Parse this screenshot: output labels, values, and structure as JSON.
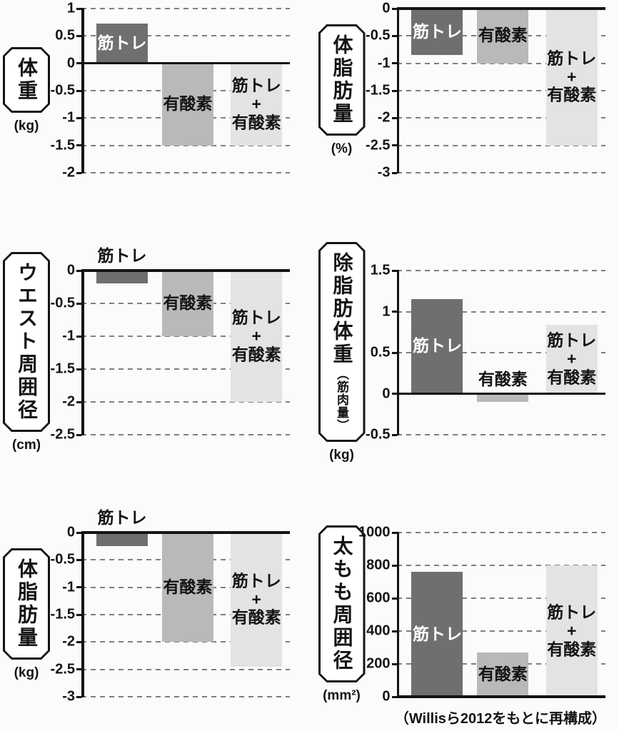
{
  "page": {
    "caption": "（Willisら2012をもとに再構成）",
    "background": "#fbfbfb"
  },
  "colors": {
    "bar_dark": "#6f6f6f",
    "bar_medium": "#b9b9b9",
    "bar_light": "#e3e3e3",
    "axis": "#141414",
    "grid": "#7f7f7f",
    "label_on_dark": "#ffffff",
    "label_on_light": "#141414"
  },
  "chart_data": [
    {
      "type": "bar",
      "title": "体重",
      "subtitle": "",
      "unit": "(kg)",
      "ylim": [
        -2,
        1
      ],
      "yticks": [
        1,
        0.5,
        0,
        -0.5,
        -1,
        -1.5,
        -2
      ],
      "ytick_labels": [
        "1",
        "0.5",
        "0",
        "-0.5",
        "-1",
        "-1.5",
        "-2"
      ],
      "gridlines": "dashed",
      "legend": "none",
      "categories": [
        "筋トレ",
        "有酸素",
        "筋トレ＋有酸素"
      ],
      "values": [
        0.72,
        -1.5,
        -1.5
      ],
      "bar_styles": [
        "dark",
        "medium",
        "light"
      ],
      "bar_label_lines": [
        [
          "筋トレ"
        ],
        [
          "有酸素"
        ],
        [
          "筋トレ",
          "+",
          "有酸素"
        ]
      ],
      "label_placement": [
        "inside",
        "inside",
        "inside"
      ]
    },
    {
      "type": "bar",
      "title": "体脂肪量",
      "subtitle": "",
      "unit": "(%)",
      "ylim": [
        -3,
        0
      ],
      "yticks": [
        0,
        -0.5,
        -1,
        -1.5,
        -2,
        -2.5,
        -3
      ],
      "ytick_labels": [
        "0",
        "-0.5",
        "-1",
        "-1.5",
        "-2",
        "-2.5",
        "-3"
      ],
      "gridlines": "dashed",
      "legend": "none",
      "categories": [
        "筋トレ",
        "有酸素",
        "筋トレ＋有酸素"
      ],
      "values": [
        -0.85,
        -1.0,
        -2.5
      ],
      "bar_styles": [
        "dark",
        "medium",
        "light"
      ],
      "bar_label_lines": [
        [
          "筋トレ"
        ],
        [
          "有酸素"
        ],
        [
          "筋トレ",
          "+",
          "有酸素"
        ]
      ],
      "label_placement": [
        "inside",
        "inside",
        "inside"
      ]
    },
    {
      "type": "bar",
      "title": "ウエスト周囲径",
      "subtitle": "",
      "unit": "(cm)",
      "ylim": [
        -2.5,
        0
      ],
      "yticks": [
        0,
        -0.5,
        -1,
        -1.5,
        -2,
        -2.5
      ],
      "ytick_labels": [
        "0",
        "-0.5",
        "-1",
        "-1.5",
        "-2",
        "-2.5"
      ],
      "gridlines": "dashed",
      "legend": "none",
      "categories": [
        "筋トレ",
        "有酸素",
        "筋トレ＋有酸素"
      ],
      "values": [
        -0.2,
        -1.0,
        -2.0
      ],
      "bar_styles": [
        "dark",
        "medium",
        "light"
      ],
      "bar_label_lines": [
        [
          "筋トレ"
        ],
        [
          "有酸素"
        ],
        [
          "筋トレ",
          "+",
          "有酸素"
        ]
      ],
      "label_placement": [
        "above",
        "inside",
        "inside"
      ]
    },
    {
      "type": "bar",
      "title": "除脂肪体重",
      "subtitle": "（筋肉量）",
      "unit": "(kg)",
      "ylim": [
        -0.5,
        1.5
      ],
      "yticks": [
        1.5,
        1,
        0.5,
        0,
        -0.5
      ],
      "ytick_labels": [
        "1.5",
        "1",
        "0.5",
        "0",
        "-0.5"
      ],
      "gridlines": "dashed",
      "legend": "none",
      "categories": [
        "筋トレ",
        "有酸素",
        "筋トレ＋有酸素"
      ],
      "values": [
        1.15,
        -0.1,
        0.84
      ],
      "bar_styles": [
        "dark",
        "medium",
        "light"
      ],
      "bar_label_lines": [
        [
          "筋トレ"
        ],
        [
          "有酸素"
        ],
        [
          "筋トレ",
          "+",
          "有酸素"
        ]
      ],
      "label_placement": [
        "inside",
        "above",
        "inside"
      ]
    },
    {
      "type": "bar",
      "title": "体脂肪量",
      "subtitle": "",
      "unit": "(kg)",
      "ylim": [
        -3,
        0
      ],
      "yticks": [
        0,
        -0.5,
        -1,
        -1.5,
        -2,
        -2.5,
        -3
      ],
      "ytick_labels": [
        "0",
        "-0.5",
        "-1",
        "-1.5",
        "-2",
        "-2.5",
        "-3"
      ],
      "gridlines": "dashed",
      "legend": "none",
      "categories": [
        "筋トレ",
        "有酸素",
        "筋トレ＋有酸素"
      ],
      "values": [
        -0.25,
        -2.0,
        -2.45
      ],
      "bar_styles": [
        "dark",
        "medium",
        "light"
      ],
      "bar_label_lines": [
        [
          "筋トレ"
        ],
        [
          "有酸素"
        ],
        [
          "筋トレ",
          "+",
          "有酸素"
        ]
      ],
      "label_placement": [
        "above",
        "inside",
        "inside"
      ]
    },
    {
      "type": "bar",
      "title": "太もも周囲径",
      "subtitle": "",
      "unit": "(mm²)",
      "ylim": [
        0,
        1000
      ],
      "yticks": [
        1000,
        800,
        600,
        400,
        200,
        0
      ],
      "ytick_labels": [
        "1000",
        "800",
        "600",
        "400",
        "200",
        "0"
      ],
      "gridlines": "dashed",
      "legend": "none",
      "categories": [
        "筋トレ",
        "有酸素",
        "筋トレ＋有酸素"
      ],
      "values": [
        760,
        270,
        800
      ],
      "bar_styles": [
        "dark",
        "medium",
        "light"
      ],
      "bar_label_lines": [
        [
          "筋トレ"
        ],
        [
          "有酸素"
        ],
        [
          "筋トレ",
          "+",
          "有酸素"
        ]
      ],
      "label_placement": [
        "inside",
        "inside",
        "inside"
      ]
    }
  ]
}
